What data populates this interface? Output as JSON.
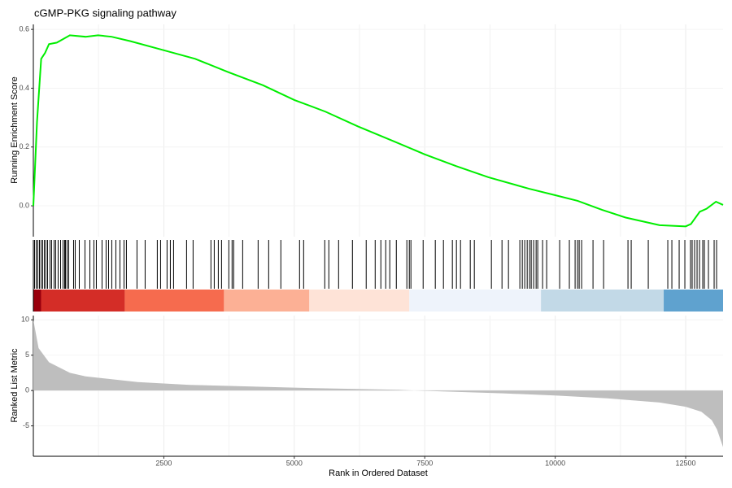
{
  "chart_data": [
    {
      "type": "line",
      "title": "cGMP-PKG signaling pathway",
      "y_label": "Running Enrichment Score",
      "color": "#00ee00",
      "x": [
        0,
        70,
        150,
        225,
        300,
        450,
        700,
        1000,
        1240,
        1500,
        1860,
        2480,
        3100,
        3730,
        4400,
        5000,
        5600,
        6220,
        6900,
        7500,
        8100,
        8720,
        9500,
        10000,
        10430,
        10900,
        11350,
        12000,
        12500,
        12600,
        12770,
        12900,
        13080,
        13216
      ],
      "values": [
        0,
        0.285,
        0.5,
        0.52,
        0.55,
        0.555,
        0.58,
        0.575,
        0.58,
        0.575,
        0.56,
        0.53,
        0.5,
        0.455,
        0.41,
        0.36,
        0.32,
        0.27,
        0.22,
        0.175,
        0.135,
        0.097,
        0.058,
        0.036,
        0.017,
        -0.014,
        -0.04,
        -0.066,
        -0.07,
        -0.062,
        -0.02,
        -0.01,
        0.014,
        0.003
      ],
      "xlim": [
        0,
        13216
      ],
      "ylim": [
        -0.105,
        0.617
      ],
      "yticks": [
        {
          "value": 0,
          "label": "0.0"
        },
        {
          "value": 0.2,
          "label": "0.2"
        },
        {
          "value": 0.4,
          "label": "0.4"
        },
        {
          "value": 0.6,
          "label": "0.6"
        }
      ],
      "grid": true
    },
    {
      "type": "rug",
      "hit_color": "#000000",
      "xlim": [
        0,
        13216
      ],
      "hits": [
        23,
        55,
        86,
        117,
        148,
        179,
        210,
        241,
        273,
        319,
        350,
        397,
        428,
        475,
        522,
        569,
        600,
        615,
        646,
        678,
        771,
        802,
        880,
        989,
        1083,
        1160,
        1207,
        1316,
        1394,
        1441,
        1503,
        1581,
        1659,
        1737,
        1783,
        1986,
        2142,
        2375,
        2438,
        2562,
        2625,
        2687,
        2936,
        3061,
        3403,
        3466,
        3544,
        3606,
        3746,
        3808,
        3839,
        4011,
        4307,
        4509,
        4743,
        5101,
        5179,
        5584,
        5662,
        5849,
        6114,
        6378,
        6550,
        6659,
        6752,
        6830,
        6955,
        7157,
        7204,
        7235,
        7469,
        7702,
        7858,
        8029,
        8107,
        8185,
        8372,
        8450,
        8777,
        8980,
        9104,
        9322,
        9369,
        9416,
        9463,
        9509,
        9540,
        9587,
        9634,
        9665,
        9758,
        9836,
        10085,
        10271,
        10381,
        10428,
        10459,
        10506,
        10724,
        10927,
        11394,
        11456,
        11783,
        12157,
        12235,
        12375,
        12484,
        12593,
        12624,
        12671,
        12718,
        12765,
        12827,
        12858,
        12936,
        13045,
        13092
      ],
      "bands": [
        {
          "start": 0,
          "end": 148,
          "color": "#99000d"
        },
        {
          "start": 148,
          "end": 1752,
          "color": "#d42d27"
        },
        {
          "start": 1752,
          "end": 3653,
          "color": "#f66b4e"
        },
        {
          "start": 3653,
          "end": 5288,
          "color": "#fcb095"
        },
        {
          "start": 5288,
          "end": 7204,
          "color": "#fee3d7"
        },
        {
          "start": 7204,
          "end": 9727,
          "color": "#eef3fb"
        },
        {
          "start": 9727,
          "end": 12079,
          "color": "#c2d9e7"
        },
        {
          "start": 12079,
          "end": 13216,
          "color": "#5fa2cf"
        }
      ]
    },
    {
      "type": "area",
      "y_label": "Ranked List Metric",
      "x_label": "Rank in Ordered Dataset",
      "color": "#bebebe",
      "x": [
        0,
        100,
        300,
        700,
        1000,
        2000,
        3000,
        5000,
        7000,
        7300,
        9000,
        10000,
        11000,
        12000,
        12500,
        12800,
        13000,
        13100,
        13216
      ],
      "values": [
        10,
        6,
        4,
        2.5,
        2,
        1.2,
        0.8,
        0.4,
        0.1,
        0,
        -0.4,
        -0.7,
        -1.1,
        -1.7,
        -2.3,
        -3,
        -4.2,
        -5.5,
        -8
      ],
      "xlim": [
        0,
        13216
      ],
      "ylim": [
        -9.3,
        10.6
      ],
      "yticks": [
        10,
        5,
        0,
        -5
      ],
      "xticks": [
        2500,
        5000,
        7500,
        10000,
        12500
      ],
      "x_minor_ticks": [
        1250,
        3750,
        6250,
        8750,
        11250
      ],
      "grid": true
    }
  ]
}
